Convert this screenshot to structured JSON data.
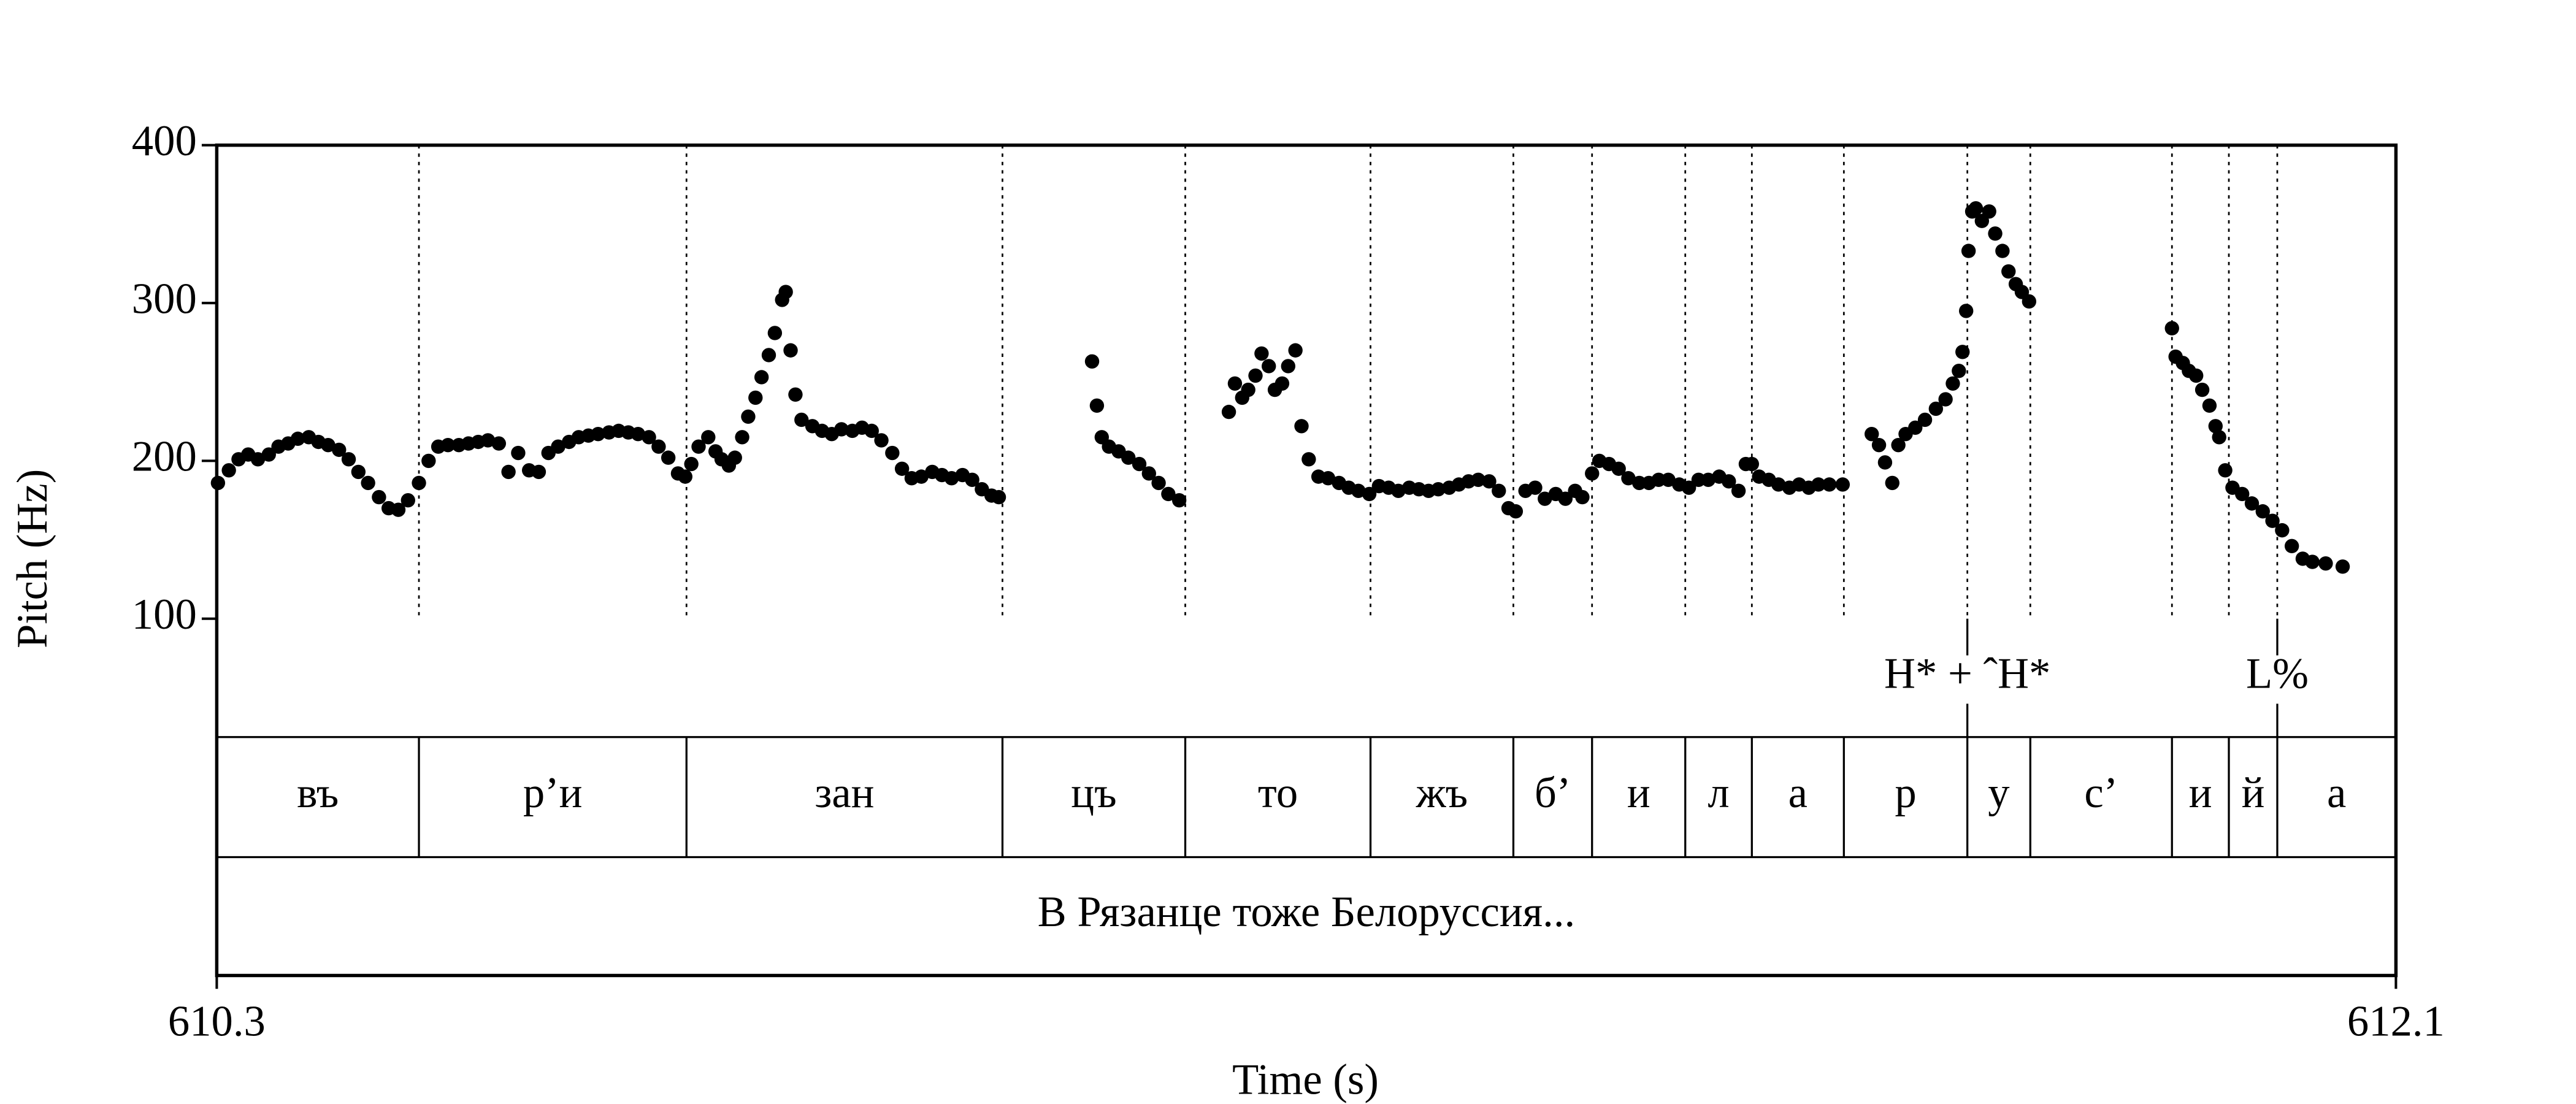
{
  "chart_data": {
    "type": "scatter",
    "ylabel": "Pitch (Hz)",
    "xlabel": "Time (s)",
    "xlim": [
      610.3,
      612.1
    ],
    "xticks": [
      610.3,
      612.1
    ],
    "ylim": [
      100,
      400
    ],
    "yticks": [
      100,
      200,
      300,
      400
    ],
    "color": "#000000",
    "x": [
      610.301,
      610.31,
      610.318,
      610.326,
      610.334,
      610.343,
      610.351,
      610.359,
      610.367,
      610.376,
      610.384,
      610.392,
      610.401,
      610.409,
      610.417,
      610.425,
      610.434,
      610.442,
      610.45,
      610.458,
      610.467,
      610.475,
      610.483,
      610.491,
      610.5,
      610.508,
      610.516,
      610.524,
      610.533,
      610.541,
      610.549,
      610.558,
      610.566,
      610.574,
      610.582,
      610.591,
      610.599,
      610.607,
      610.615,
      610.624,
      610.632,
      610.64,
      610.648,
      610.657,
      610.665,
      610.673,
      610.681,
      610.687,
      610.692,
      610.698,
      610.706,
      610.712,
      610.717,
      610.723,
      610.728,
      610.734,
      610.739,
      610.745,
      610.75,
      610.756,
      610.761,
      610.767,
      610.77,
      610.774,
      610.778,
      610.783,
      610.792,
      610.8,
      610.808,
      610.816,
      610.825,
      610.833,
      610.841,
      610.849,
      610.858,
      610.866,
      610.874,
      610.882,
      610.891,
      610.899,
      610.907,
      610.916,
      610.924,
      610.932,
      610.94,
      610.946,
      611.023,
      611.027,
      611.031,
      611.037,
      611.045,
      611.053,
      611.062,
      611.07,
      611.078,
      611.086,
      611.095,
      611.136,
      611.141,
      611.147,
      611.152,
      611.158,
      611.163,
      611.169,
      611.174,
      611.18,
      611.185,
      611.191,
      611.196,
      611.202,
      611.21,
      611.218,
      611.227,
      611.235,
      611.243,
      611.252,
      611.26,
      611.268,
      611.276,
      611.285,
      611.293,
      611.301,
      611.309,
      611.318,
      611.326,
      611.334,
      611.342,
      611.351,
      611.359,
      611.367,
      611.373,
      611.381,
      611.389,
      611.397,
      611.406,
      611.414,
      611.422,
      611.428,
      611.436,
      611.442,
      611.45,
      611.458,
      611.466,
      611.475,
      611.483,
      611.491,
      611.499,
      611.508,
      611.516,
      611.524,
      611.532,
      611.541,
      611.549,
      611.557,
      611.563,
      611.568,
      611.574,
      611.582,
      611.59,
      611.599,
      611.607,
      611.615,
      611.623,
      611.632,
      611.643,
      611.667,
      611.673,
      611.678,
      611.684,
      611.689,
      611.695,
      611.703,
      611.711,
      611.72,
      611.728,
      611.734,
      611.739,
      611.742,
      611.745,
      611.747,
      611.75,
      611.753,
      611.758,
      611.764,
      611.769,
      611.775,
      611.78,
      611.786,
      611.791,
      611.797,
      611.915,
      611.918,
      611.924,
      611.929,
      611.935,
      611.94,
      611.946,
      611.951,
      611.954,
      611.959,
      611.965,
      611.973,
      611.981,
      611.99,
      611.998,
      612.006,
      612.014,
      612.023,
      612.031,
      612.042,
      612.056
    ],
    "values": [
      186,
      194,
      201,
      204,
      201,
      204,
      209,
      211,
      214,
      215,
      212,
      210,
      207,
      201,
      193,
      186,
      177,
      170,
      169,
      175,
      186,
      200,
      209,
      210,
      210,
      211,
      212,
      213,
      211,
      193,
      205,
      194,
      193,
      205,
      209,
      212,
      215,
      216,
      217,
      218,
      219,
      218,
      217,
      215,
      209,
      202,
      192,
      190,
      198,
      209,
      215,
      206,
      201,
      197,
      202,
      215,
      228,
      240,
      253,
      267,
      281,
      302,
      307,
      270,
      242,
      226,
      222,
      219,
      217,
      220,
      219,
      221,
      219,
      213,
      205,
      195,
      189,
      190,
      193,
      191,
      189,
      191,
      188,
      182,
      178,
      177,
      263,
      235,
      215,
      209,
      206,
      202,
      198,
      192,
      186,
      179,
      175,
      231,
      249,
      240,
      245,
      254,
      268,
      260,
      245,
      249,
      260,
      270,
      222,
      201,
      190,
      189,
      186,
      183,
      181,
      179,
      184,
      183,
      181,
      183,
      182,
      181,
      182,
      183,
      185,
      187,
      188,
      187,
      181,
      170,
      168,
      181,
      183,
      176,
      179,
      176,
      181,
      177,
      192,
      200,
      198,
      195,
      189,
      186,
      186,
      188,
      188,
      185,
      183,
      188,
      188,
      190,
      187,
      181,
      198,
      198,
      190,
      188,
      185,
      183,
      185,
      183,
      185,
      185,
      185,
      217,
      210,
      199,
      186,
      210,
      217,
      221,
      226,
      233,
      239,
      249,
      257,
      269,
      295,
      333,
      358,
      360,
      352,
      358,
      344,
      333,
      320,
      312,
      307,
      301,
      284,
      266,
      262,
      257,
      254,
      245,
      235,
      222,
      215,
      194,
      183,
      179,
      173,
      168,
      162,
      156,
      146,
      138,
      136,
      135,
      133
    ],
    "tone_tier": {
      "times": [
        611.746,
        612.002
      ],
      "labels": [
        "H* + ˆH*",
        "L%"
      ]
    },
    "segment_tier": {
      "boundaries": [
        610.467,
        610.688,
        610.949,
        611.1,
        611.253,
        611.371,
        611.436,
        611.513,
        611.568,
        611.644,
        611.746,
        611.798,
        611.915,
        611.962,
        612.002
      ],
      "labels": [
        "въ",
        "р’и",
        "зан",
        "цъ",
        "то",
        "жъ",
        "б’",
        "и",
        "л",
        "а",
        "р",
        "у",
        "с’",
        "и",
        "й",
        "а"
      ]
    },
    "text_tier": {
      "labels": [
        "В Рязанце тоже Белоруссия..."
      ]
    }
  }
}
